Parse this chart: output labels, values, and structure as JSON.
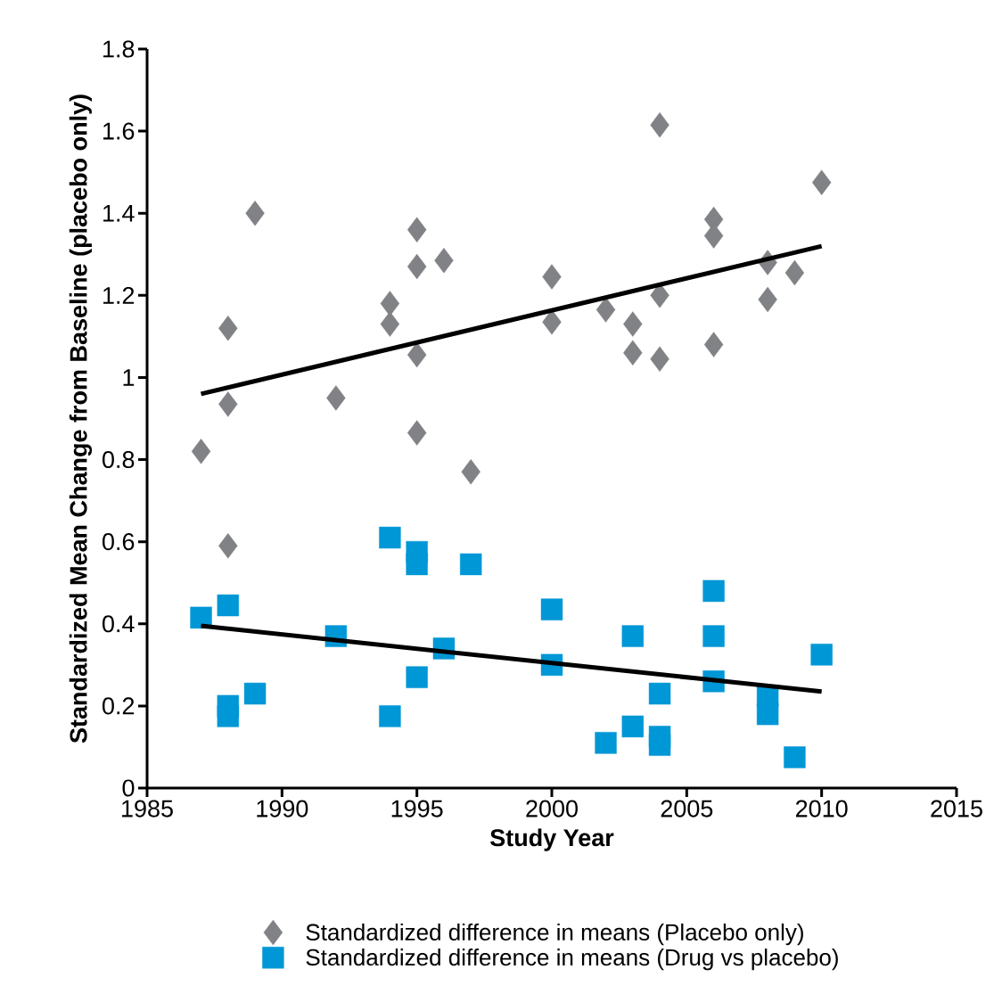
{
  "chart_data": {
    "type": "scatter",
    "xlabel": "Study Year",
    "ylabel": "Standardized Mean Change from Baseline (placebo only)",
    "xlim": [
      1985,
      2015
    ],
    "xticks": [
      1985,
      1990,
      1995,
      2000,
      2005,
      2010,
      2015
    ],
    "ylim": [
      0,
      1.8
    ],
    "yticks": [
      0,
      {
        "value": 0.2,
        "label": "0.2"
      },
      {
        "value": 0.4,
        "label": "0.4"
      },
      {
        "value": 0.6,
        "label": "0.6"
      },
      {
        "value": 0.8,
        "label": "0.8"
      },
      1,
      {
        "value": 1.2,
        "label": "1.2"
      },
      {
        "value": 1.4,
        "label": "1.4"
      },
      {
        "value": 1.6,
        "label": "1.6"
      },
      {
        "value": 1.8,
        "label": "1.8"
      }
    ],
    "grid": false,
    "legend": "bottom",
    "series": [
      {
        "name": "Standardized difference in means (Placebo only)",
        "type": "scatter",
        "marker": "diamond",
        "color": "#808285",
        "x": [
          1987,
          1988,
          1988,
          1988,
          1989,
          1992,
          1994,
          1994,
          1995,
          1995,
          1995,
          1995,
          1996,
          1997,
          2000,
          2000,
          2002,
          2003,
          2003,
          2004,
          2004,
          2004,
          2006,
          2006,
          2006,
          2008,
          2008,
          2009,
          2010
        ],
        "values": [
          0.82,
          1.12,
          0.935,
          0.59,
          1.4,
          0.95,
          1.18,
          1.13,
          1.36,
          1.27,
          1.055,
          0.865,
          1.285,
          0.77,
          1.245,
          1.135,
          1.165,
          1.13,
          1.06,
          1.615,
          1.2,
          1.045,
          1.385,
          1.345,
          1.08,
          1.28,
          1.19,
          1.255,
          1.475
        ]
      },
      {
        "name": "Standardized difference in means (Drug vs placebo)",
        "type": "scatter",
        "marker": "square",
        "color": "#0097d6",
        "x": [
          1987,
          1988,
          1988,
          1988,
          1989,
          1992,
          1994,
          1994,
          1995,
          1995,
          1995,
          1996,
          1997,
          2000,
          2000,
          2002,
          2003,
          2003,
          2004,
          2004,
          2004,
          2006,
          2006,
          2006,
          2008,
          2008,
          2009,
          2010
        ],
        "values": [
          0.415,
          0.445,
          0.2,
          0.175,
          0.23,
          0.37,
          0.61,
          0.175,
          0.575,
          0.545,
          0.27,
          0.34,
          0.545,
          0.435,
          0.3,
          0.11,
          0.37,
          0.15,
          0.23,
          0.125,
          0.105,
          0.48,
          0.37,
          0.26,
          0.225,
          0.18,
          0.075,
          0.325
        ]
      },
      {
        "type": "line",
        "marker": "none",
        "color": "#000000",
        "x": [
          1987,
          2010
        ],
        "values": [
          0.96,
          1.32
        ]
      },
      {
        "type": "line",
        "marker": "none",
        "color": "#000000",
        "x": [
          1987,
          2010
        ],
        "values": [
          0.395,
          0.235
        ]
      }
    ]
  }
}
